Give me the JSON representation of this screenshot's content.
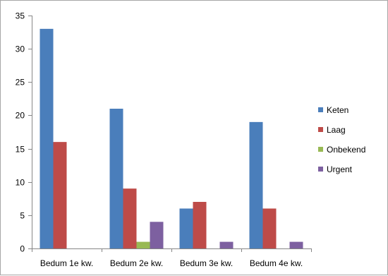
{
  "chart_data": {
    "type": "bar",
    "categories": [
      "Bedum 1e kw.",
      "Bedum 2e kw.",
      "Bedum 3e kw.",
      "Bedum 4e kw."
    ],
    "series": [
      {
        "name": "Keten",
        "color": "#4a7ebb",
        "values": [
          33,
          21,
          6,
          19
        ]
      },
      {
        "name": "Laag",
        "color": "#be4b48",
        "values": [
          16,
          9,
          7,
          6
        ]
      },
      {
        "name": "Onbekend",
        "color": "#98b954",
        "values": [
          0,
          1,
          0,
          0
        ]
      },
      {
        "name": "Urgent",
        "color": "#7d60a0",
        "values": [
          0,
          4,
          1,
          1
        ]
      }
    ],
    "yticks": [
      "0",
      "5",
      "10",
      "15",
      "20",
      "25",
      "30",
      "35"
    ],
    "ylim": [
      0,
      35
    ],
    "grid": false,
    "legend": "right"
  }
}
